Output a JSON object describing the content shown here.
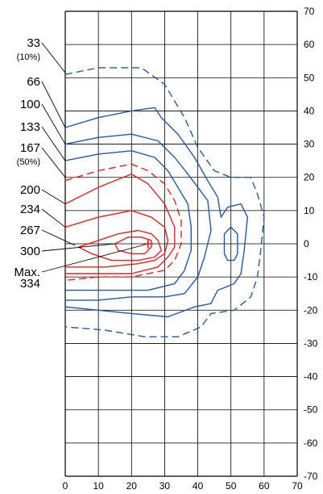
{
  "chart_data": {
    "type": "line",
    "title": "",
    "xlabel": "",
    "ylabel": "",
    "xlim": [
      0,
      70
    ],
    "ylim": [
      -70,
      70
    ],
    "x_ticks": [
      "0",
      "10",
      "20",
      "30",
      "40",
      "50",
      "60",
      "70"
    ],
    "y_ticks": [
      "70",
      "60",
      "50",
      "40",
      "30",
      "20",
      "10",
      "0",
      "-10",
      "-20",
      "-30",
      "-40",
      "-50",
      "-60",
      "-70"
    ],
    "grid": true,
    "colors": {
      "low": "#1f5aa6",
      "high": "#e8201f",
      "grid": "#000000"
    },
    "contour_labels": [
      {
        "value": "33",
        "note": "(10%)",
        "curve": 0
      },
      {
        "value": "66",
        "note": "",
        "curve": 1
      },
      {
        "value": "100",
        "note": "",
        "curve": 2
      },
      {
        "value": "133",
        "note": "",
        "curve": 3
      },
      {
        "value": "167",
        "note": "(50%)",
        "curve": 4
      },
      {
        "value": "200",
        "note": "",
        "curve": 5
      },
      {
        "value": "234",
        "note": "",
        "curve": 6
      },
      {
        "value": "267",
        "note": "",
        "curve": 7
      },
      {
        "value": "300",
        "note": "",
        "curve": 8
      },
      {
        "value": "Max.",
        "note": "334",
        "curve": 9
      }
    ],
    "max_marker": {
      "x": 25,
      "y": 0
    },
    "series": [
      {
        "level": 33,
        "color": "low",
        "dashed": true,
        "points": [
          [
            0,
            51
          ],
          [
            10,
            53
          ],
          [
            23,
            53
          ],
          [
            30,
            48
          ],
          [
            36,
            38
          ],
          [
            40,
            29
          ],
          [
            45,
            22
          ],
          [
            50,
            20
          ],
          [
            56,
            20
          ],
          [
            58,
            15
          ],
          [
            60,
            8
          ],
          [
            59,
            -2
          ],
          [
            58,
            -10
          ],
          [
            56,
            -16
          ],
          [
            51,
            -20
          ],
          [
            44,
            -21
          ],
          [
            41,
            -25
          ],
          [
            34,
            -28
          ],
          [
            24,
            -28
          ],
          [
            12,
            -26
          ],
          [
            0,
            -25
          ]
        ]
      },
      {
        "level": 66,
        "color": "low",
        "dashed": false,
        "points": [
          [
            0,
            35
          ],
          [
            10,
            38
          ],
          [
            20,
            40
          ],
          [
            27,
            41
          ],
          [
            29,
            38
          ],
          [
            34,
            33
          ],
          [
            39,
            26
          ],
          [
            43,
            19
          ],
          [
            46,
            14
          ],
          [
            47,
            8
          ],
          [
            49,
            11
          ],
          [
            53,
            12
          ],
          [
            55,
            8
          ],
          [
            54,
            -2
          ],
          [
            53,
            -9
          ],
          [
            51,
            -12
          ],
          [
            46,
            -14
          ],
          [
            45,
            -16
          ],
          [
            44,
            -18
          ],
          [
            39,
            -19
          ],
          [
            31,
            -22
          ],
          [
            20,
            -21
          ],
          [
            10,
            -20
          ],
          [
            0,
            -19
          ]
        ]
      },
      {
        "level": 100,
        "color": "low",
        "dashed": false,
        "points": [
          [
            0,
            30
          ],
          [
            10,
            32
          ],
          [
            20,
            33
          ],
          [
            28,
            31
          ],
          [
            33,
            26
          ],
          [
            37,
            21
          ],
          [
            40,
            17
          ],
          [
            43,
            13
          ],
          [
            44,
            4
          ],
          [
            42,
            -4
          ],
          [
            40,
            -10
          ],
          [
            36,
            -15
          ],
          [
            30,
            -16
          ],
          [
            20,
            -16
          ],
          [
            10,
            -17
          ],
          [
            0,
            -17
          ]
        ]
      },
      {
        "level": 133,
        "color": "low",
        "dashed": false,
        "points": [
          [
            0,
            25
          ],
          [
            10,
            27
          ],
          [
            20,
            28
          ],
          [
            27,
            26
          ],
          [
            31,
            22
          ],
          [
            34,
            17
          ],
          [
            37,
            12
          ],
          [
            38,
            5
          ],
          [
            38,
            -2
          ],
          [
            36,
            -8
          ],
          [
            33,
            -12
          ],
          [
            25,
            -14
          ],
          [
            15,
            -14
          ],
          [
            0,
            -14
          ]
        ]
      },
      {
        "level": 167,
        "color": "red",
        "dashed": true,
        "points": [
          [
            0,
            19
          ],
          [
            10,
            22
          ],
          [
            20,
            24
          ],
          [
            25,
            22
          ],
          [
            30,
            18
          ],
          [
            33,
            13
          ],
          [
            35,
            7
          ],
          [
            35,
            0
          ],
          [
            33,
            -5
          ],
          [
            30,
            -8
          ],
          [
            20,
            -10
          ],
          [
            10,
            -10
          ],
          [
            0,
            -11
          ]
        ]
      },
      {
        "level": 200,
        "color": "red",
        "dashed": false,
        "points": [
          [
            0,
            12
          ],
          [
            10,
            17
          ],
          [
            20,
            21
          ],
          [
            25,
            18
          ],
          [
            30,
            12
          ],
          [
            33,
            5
          ],
          [
            33,
            -1
          ],
          [
            31,
            -4
          ],
          [
            28,
            -7
          ],
          [
            20,
            -9
          ],
          [
            10,
            -9
          ],
          [
            0,
            -9
          ]
        ]
      },
      {
        "level": 234,
        "color": "red",
        "dashed": false,
        "points": [
          [
            0,
            5
          ],
          [
            10,
            8
          ],
          [
            20,
            10
          ],
          [
            26,
            8
          ],
          [
            30,
            5
          ],
          [
            31,
            1
          ],
          [
            30,
            -3
          ],
          [
            27,
            -5
          ],
          [
            22,
            -6
          ],
          [
            12,
            -7
          ],
          [
            0,
            -7
          ]
        ]
      },
      {
        "level": 267,
        "color": "red",
        "dashed": false,
        "points": [
          [
            4,
            -1
          ],
          [
            10,
            1
          ],
          [
            16,
            3
          ],
          [
            22,
            4
          ],
          [
            26,
            3
          ],
          [
            28,
            1
          ],
          [
            29,
            -2
          ],
          [
            27,
            -4
          ],
          [
            22,
            -5
          ],
          [
            14,
            -5
          ],
          [
            8,
            -3
          ],
          [
            4,
            -1
          ]
        ]
      },
      {
        "level": 300,
        "color": "red",
        "dashed": false,
        "points": [
          [
            15,
            0
          ],
          [
            19,
            2
          ],
          [
            23,
            2
          ],
          [
            26,
            1
          ],
          [
            26,
            -1
          ],
          [
            24,
            -3
          ],
          [
            20,
            -3
          ],
          [
            16,
            -2
          ],
          [
            15,
            0
          ]
        ]
      },
      {
        "level": 33,
        "color": "low",
        "dashed": false,
        "points": [
          [
            50,
            5
          ],
          [
            52,
            3
          ],
          [
            52,
            -3
          ],
          [
            51,
            -5
          ],
          [
            49,
            -5
          ],
          [
            48,
            -3
          ],
          [
            48,
            3
          ],
          [
            50,
            5
          ]
        ]
      }
    ]
  }
}
